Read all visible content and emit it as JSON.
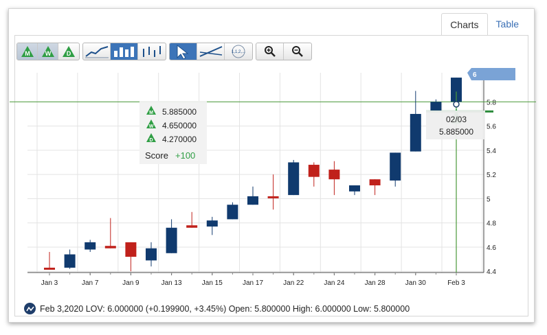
{
  "tabs": [
    {
      "label": "Charts",
      "active": true
    },
    {
      "label": "Table",
      "active": false
    }
  ],
  "toolbar": {
    "period_buttons": [
      {
        "letter": "M",
        "name": "monthly"
      },
      {
        "letter": "W",
        "name": "weekly"
      },
      {
        "letter": "D",
        "name": "daily"
      }
    ],
    "chart_type_buttons": [
      "line-chart-icon",
      "bar-chart-icon",
      "ohlc-chart-icon"
    ],
    "tool_buttons": [
      "pointer-icon",
      "trendline-icon",
      "fibonacci-icon"
    ],
    "fib_label": "1,1,2,...",
    "zoom_buttons": [
      "zoom-in-icon",
      "zoom-out-icon"
    ]
  },
  "tooltip": {
    "levels": [
      {
        "letter": "M",
        "value": "5.885000"
      },
      {
        "letter": "W",
        "value": "4.650000"
      },
      {
        "letter": "D",
        "value": "4.270000"
      }
    ],
    "score_label": "Score",
    "score_value": "+100"
  },
  "cursor_label": {
    "date": "02/03",
    "value": "5.885000"
  },
  "price_tag": "6",
  "info": {
    "text": "Feb 3,2020 LOV: 6.000000 (+0.199900, +3.45%) Open: 5.800000 High: 6.000000 Low: 5.800000"
  },
  "colors": {
    "up": "#103a6e",
    "down": "#c0211b",
    "line": "#4a9a3a",
    "tag": "#7aa3d6",
    "tab_link": "#3a6fb5"
  },
  "chart_data": {
    "type": "candlestick",
    "y_ticks": [
      "4.4",
      "4.6",
      "4.8",
      "5",
      "5.2",
      "5.4",
      "5.6",
      "5.8"
    ],
    "ylim": [
      4.39,
      6.04
    ],
    "x_labels": [
      "Jan 3",
      "Jan 7",
      "Jan 9",
      "Jan 13",
      "Jan 15",
      "Jan 17",
      "Jan 22",
      "Jan 24",
      "Jan 28",
      "Jan 30",
      "Feb 3"
    ],
    "horizontal_line": 5.8,
    "candles": [
      {
        "date": "Jan 3",
        "open": 4.43,
        "close": 4.42,
        "high": 4.56,
        "low": 4.42
      },
      {
        "date": "Jan 6",
        "open": 4.43,
        "close": 4.54,
        "high": 4.58,
        "low": 4.42
      },
      {
        "date": "Jan 7",
        "open": 4.58,
        "close": 4.64,
        "high": 4.66,
        "low": 4.56
      },
      {
        "date": "Jan 8",
        "open": 4.61,
        "close": 4.59,
        "high": 4.84,
        "low": 4.59
      },
      {
        "date": "Jan 9",
        "open": 4.64,
        "close": 4.52,
        "high": 4.64,
        "low": 4.4
      },
      {
        "date": "Jan 10",
        "open": 4.49,
        "close": 4.59,
        "high": 4.64,
        "low": 4.44
      },
      {
        "date": "Jan 13",
        "open": 4.55,
        "close": 4.76,
        "high": 4.83,
        "low": 4.55
      },
      {
        "date": "Jan 14",
        "open": 4.78,
        "close": 4.76,
        "high": 4.89,
        "low": 4.76
      },
      {
        "date": "Jan 15",
        "open": 4.77,
        "close": 4.82,
        "high": 4.85,
        "low": 4.7
      },
      {
        "date": "Jan 16",
        "open": 4.83,
        "close": 4.95,
        "high": 4.97,
        "low": 4.83
      },
      {
        "date": "Jan 17",
        "open": 4.95,
        "close": 5.02,
        "high": 5.1,
        "low": 4.95
      },
      {
        "date": "Jan 21",
        "open": 5.02,
        "close": 5.01,
        "high": 5.2,
        "low": 4.91
      },
      {
        "date": "Jan 22",
        "open": 5.03,
        "close": 5.3,
        "high": 5.32,
        "low": 5.03
      },
      {
        "date": "Jan 23",
        "open": 5.28,
        "close": 5.18,
        "high": 5.3,
        "low": 5.1
      },
      {
        "date": "Jan 24",
        "open": 5.24,
        "close": 5.16,
        "high": 5.31,
        "low": 5.03
      },
      {
        "date": "Jan 27",
        "open": 5.06,
        "close": 5.11,
        "high": 5.11,
        "low": 5.03
      },
      {
        "date": "Jan 28",
        "open": 5.16,
        "close": 5.11,
        "high": 5.16,
        "low": 5.03
      },
      {
        "date": "Jan 29",
        "open": 5.15,
        "close": 5.38,
        "high": 5.38,
        "low": 5.1
      },
      {
        "date": "Jan 30",
        "open": 5.39,
        "close": 5.7,
        "high": 5.89,
        "low": 5.39
      },
      {
        "date": "Jan 31",
        "open": 5.72,
        "close": 5.8,
        "high": 5.82,
        "low": 5.72
      },
      {
        "date": "Feb 3",
        "open": 5.8,
        "close": 6.0,
        "high": 6.0,
        "low": 5.8
      }
    ]
  }
}
